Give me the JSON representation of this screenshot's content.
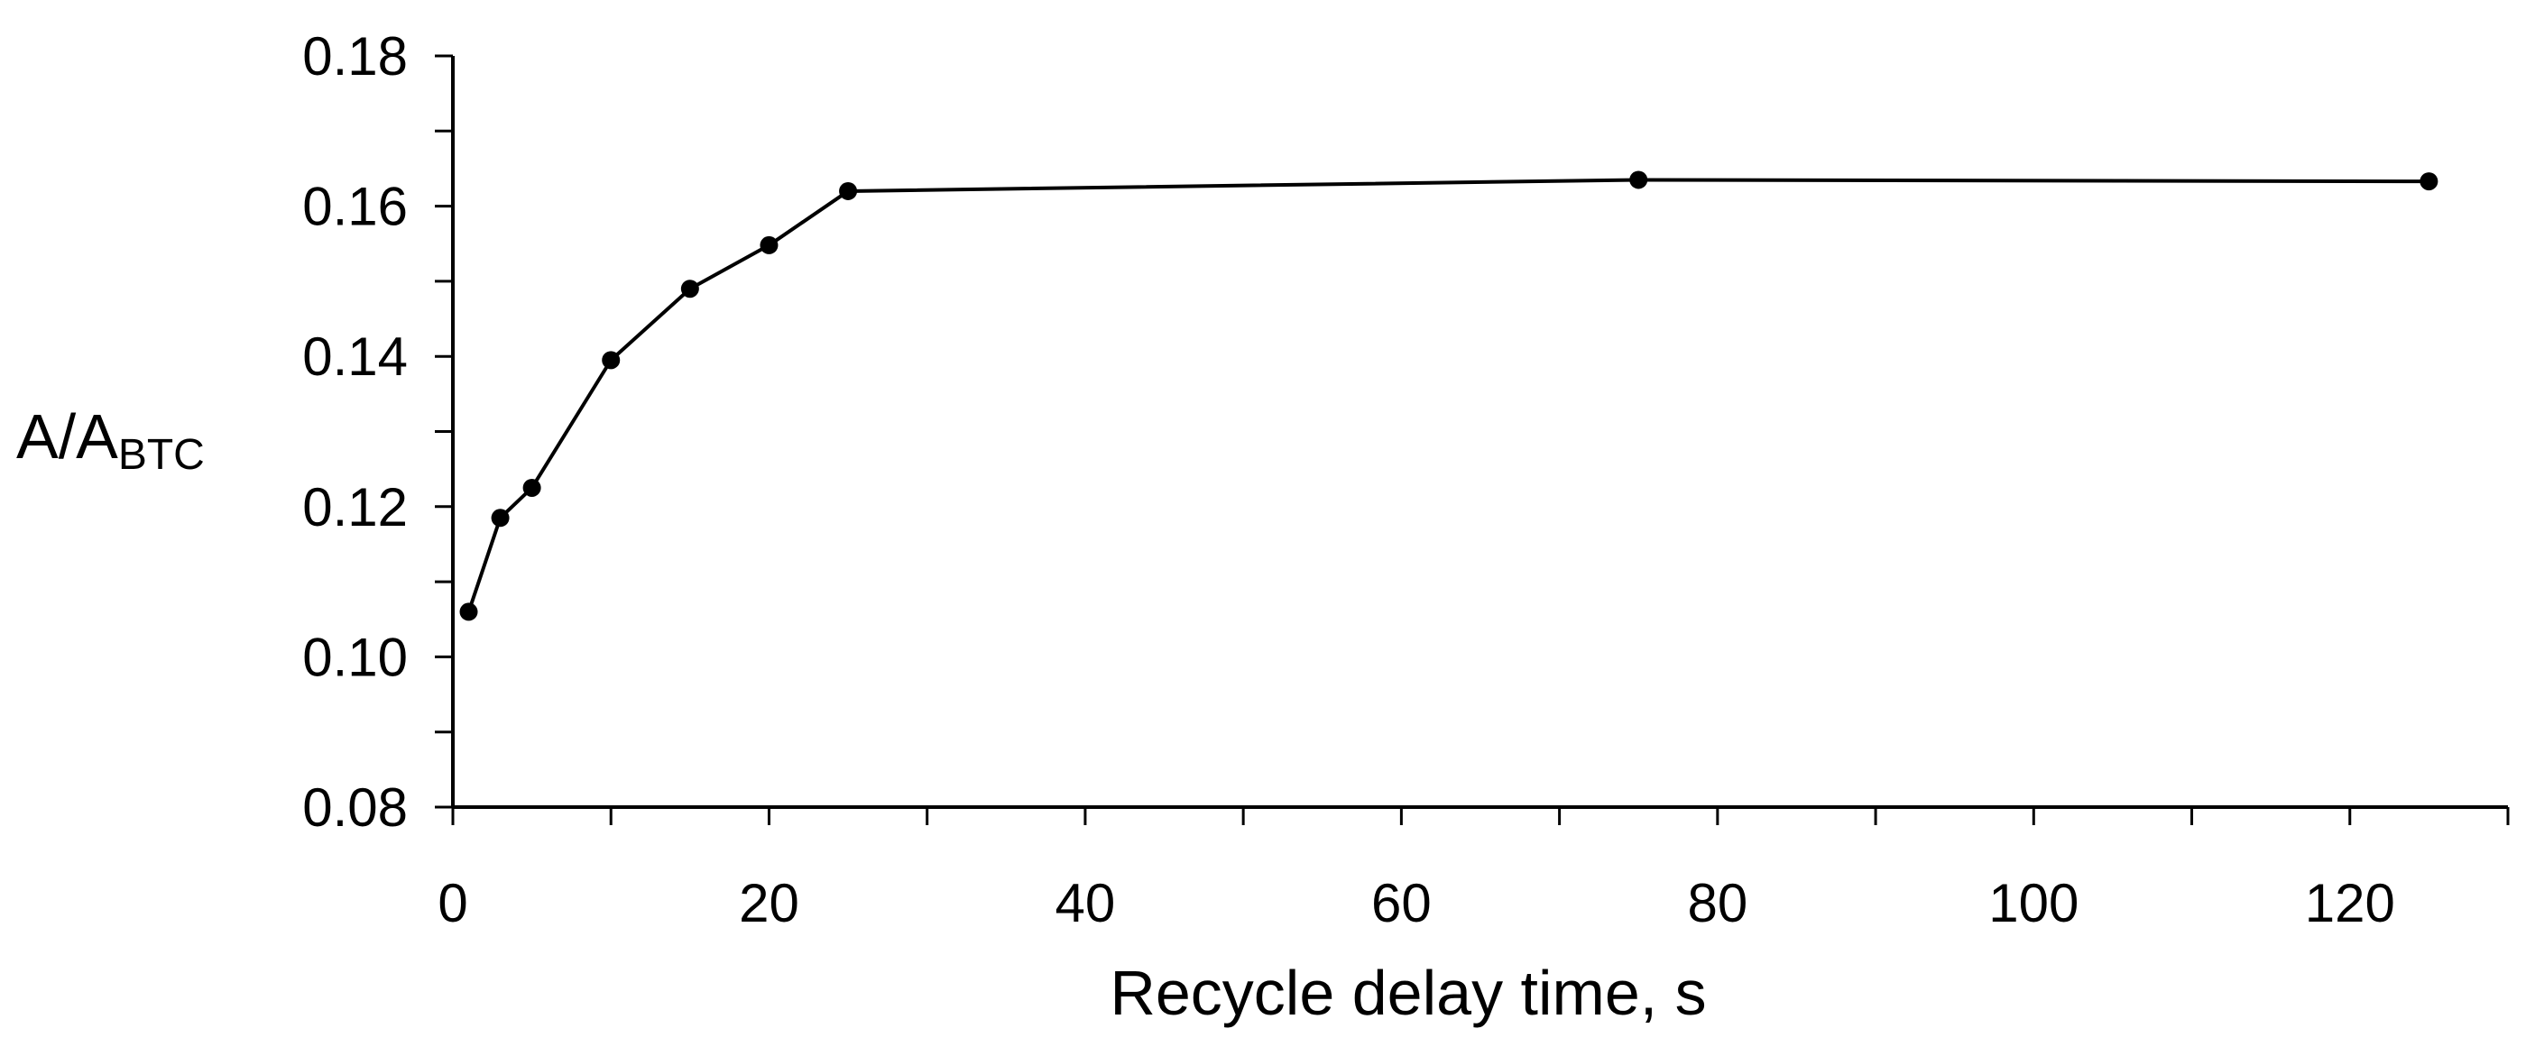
{
  "chart_data": {
    "type": "line",
    "title": "",
    "xlabel": "Recycle delay time, s",
    "ylabel": {
      "main": "A/A",
      "subscript": "BTC"
    },
    "xlim": [
      0,
      130
    ],
    "ylim": [
      0.08,
      0.18
    ],
    "x_ticks": [
      0,
      20,
      40,
      60,
      80,
      100,
      120
    ],
    "x_tick_labels": [
      "0",
      "20",
      "40",
      "60",
      "80",
      "100",
      "120"
    ],
    "x_minor_step": 10,
    "y_ticks": [
      0.08,
      0.1,
      0.12,
      0.14,
      0.16,
      0.18
    ],
    "y_tick_labels": [
      "0.08",
      "0.10",
      "0.12",
      "0.14",
      "0.16",
      "0.18"
    ],
    "y_minor_step": 0.01,
    "grid": false,
    "legend": "none",
    "series": [
      {
        "x": [
          1,
          3,
          5,
          10,
          15,
          20,
          25,
          75,
          125
        ],
        "y": [
          0.106,
          0.1185,
          0.1225,
          0.1395,
          0.149,
          0.1548,
          0.162,
          0.1635,
          0.1633
        ],
        "color": "#000000",
        "marker": "circle"
      }
    ]
  }
}
